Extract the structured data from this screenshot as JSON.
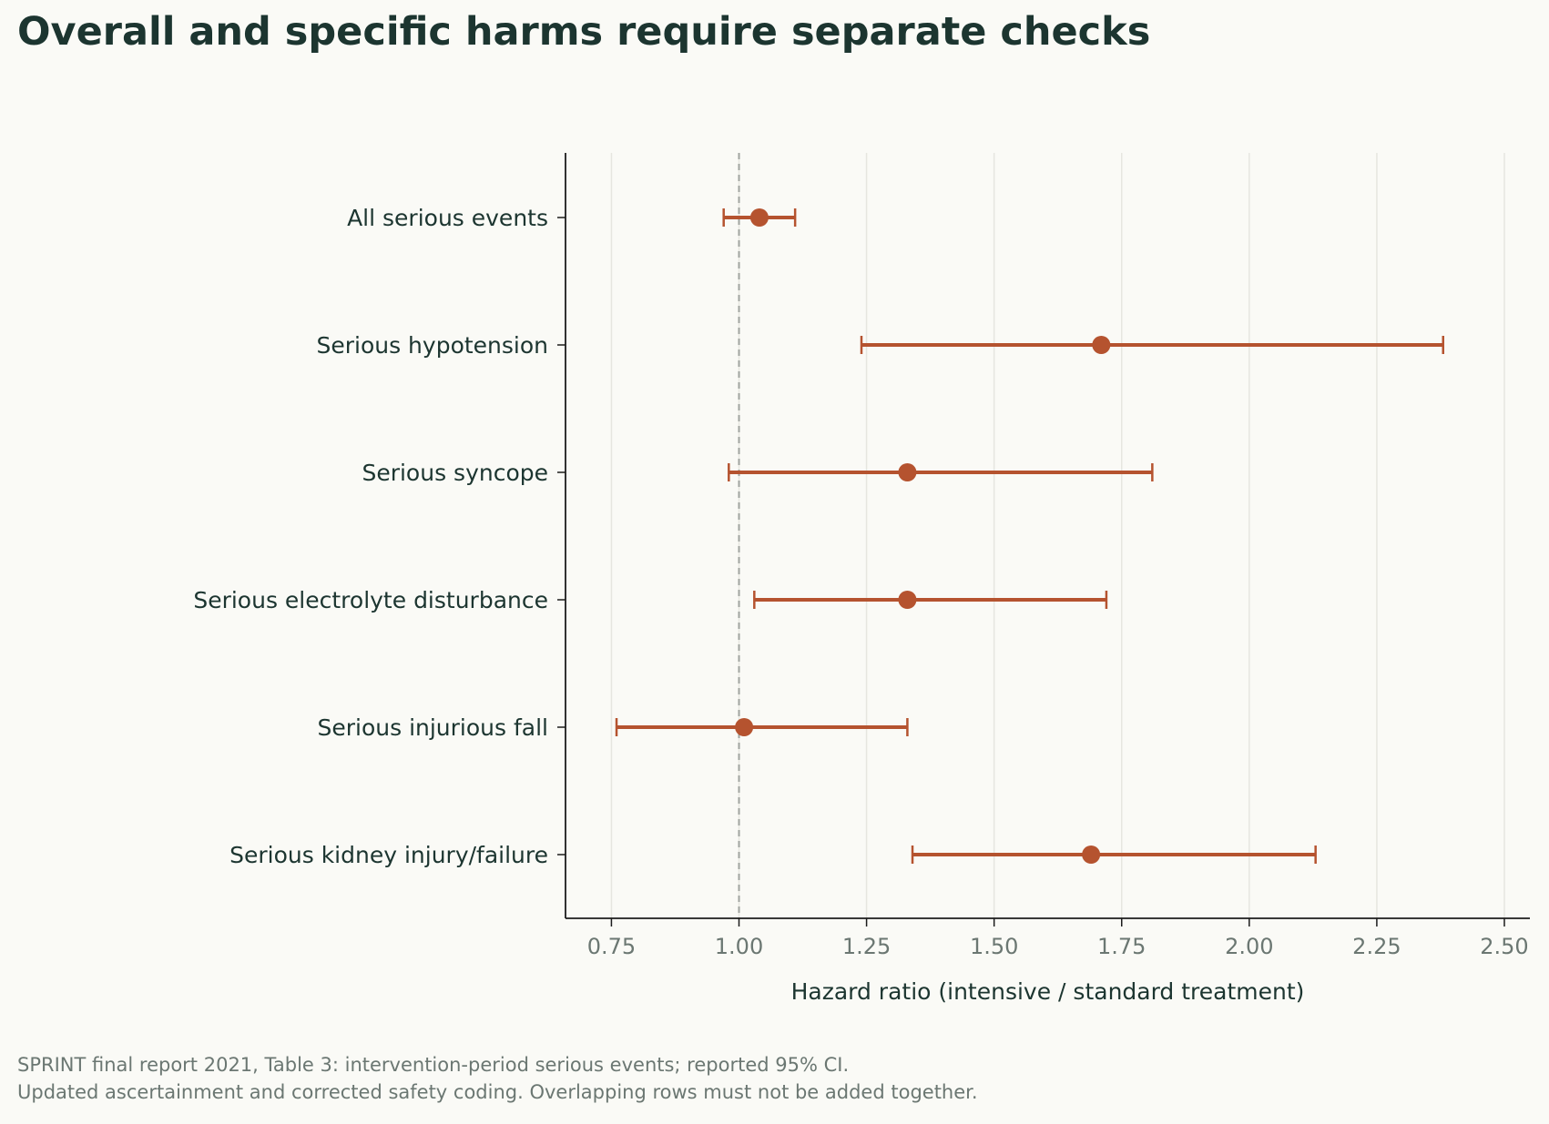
{
  "title": "Overall and specific harms require separate checks",
  "footer": {
    "line1": "SPRINT final report 2021, Table 3: intervention-period serious events; reported 95% CI.",
    "line2": "Updated ascertainment and corrected safety coding. Overlapping rows must not be added together."
  },
  "colors": {
    "background": "#fafaf6",
    "marker": "#b5532f",
    "text": "#1c3530",
    "tick_text": "#6b7772",
    "grid": "#e6e6e0",
    "reference_line": "#a0a49f"
  },
  "chart_data": {
    "type": "forest",
    "xlabel": "Hazard ratio (intensive / standard treatment)",
    "xlim": [
      0.66,
      2.55
    ],
    "xticks": [
      0.75,
      1.0,
      1.25,
      1.5,
      1.75,
      2.0,
      2.25,
      2.5
    ],
    "xtick_labels": [
      "0.75",
      "1.00",
      "1.25",
      "1.50",
      "1.75",
      "2.00",
      "2.25",
      "2.50"
    ],
    "reference_value": 1.0,
    "grid": "vertical",
    "rows": [
      {
        "label": "All serious events",
        "hr": 1.04,
        "lo": 0.97,
        "hi": 1.11
      },
      {
        "label": "Serious hypotension",
        "hr": 1.71,
        "lo": 1.24,
        "hi": 2.38
      },
      {
        "label": "Serious syncope",
        "hr": 1.33,
        "lo": 0.98,
        "hi": 1.81
      },
      {
        "label": "Serious electrolyte disturbance",
        "hr": 1.33,
        "lo": 1.03,
        "hi": 1.72
      },
      {
        "label": "Serious injurious fall",
        "hr": 1.01,
        "lo": 0.76,
        "hi": 1.33
      },
      {
        "label": "Serious kidney injury/failure",
        "hr": 1.69,
        "lo": 1.34,
        "hi": 2.13
      }
    ]
  }
}
